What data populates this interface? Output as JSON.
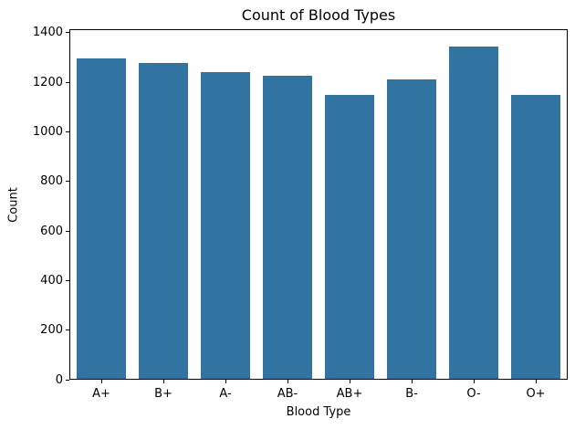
{
  "chart_data": {
    "type": "bar",
    "title": "Count of Blood Types",
    "xlabel": "Blood Type",
    "ylabel": "Count",
    "categories": [
      "A+",
      "B+",
      "A-",
      "AB-",
      "AB+",
      "B-",
      "O-",
      "O+"
    ],
    "values": [
      1300,
      1280,
      1242,
      1230,
      1151,
      1213,
      1347,
      1151
    ],
    "bar_color": "#3274a1",
    "axis_color": "#000000",
    "background_color": "#ffffff",
    "ylim": [
      0,
      1414
    ],
    "yticks": [
      0,
      200,
      400,
      600,
      800,
      1000,
      1200,
      1400
    ],
    "bar_width_fraction": 0.8,
    "grid": false,
    "legend": false
  }
}
